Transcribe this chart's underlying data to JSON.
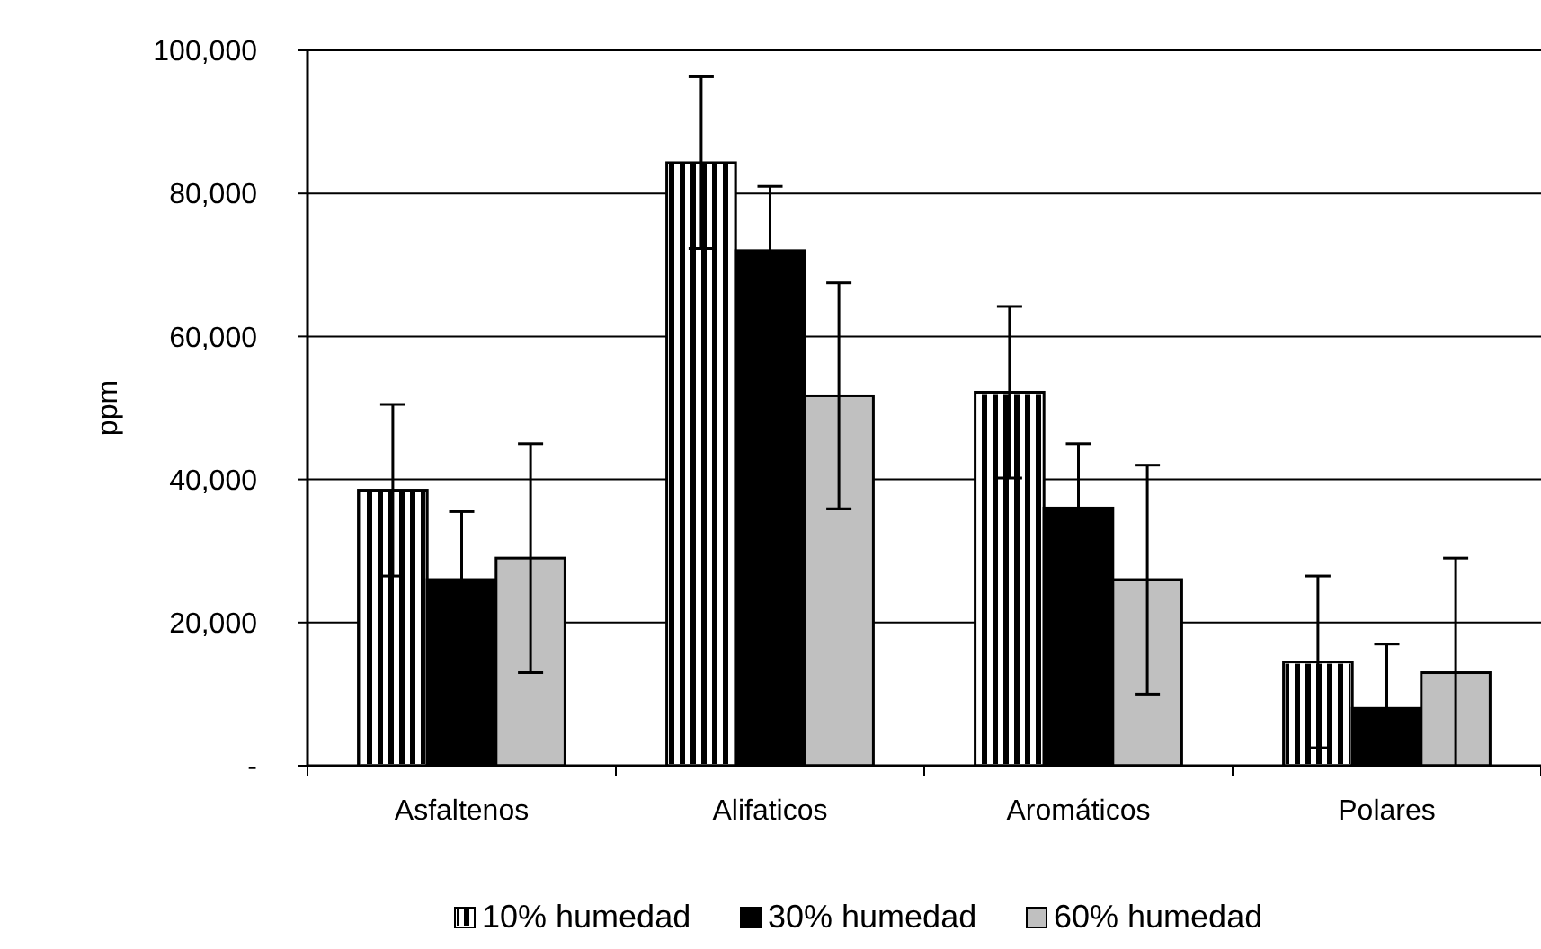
{
  "chart_data": {
    "type": "bar",
    "ylabel": "ppm",
    "categories": [
      "Asfaltenos",
      "Alifaticos",
      "Aromáticos",
      "Polares"
    ],
    "series": [
      {
        "name": "10% humedad",
        "color": "#ffffff",
        "values": [
          38500,
          84300,
          52200,
          14500
        ],
        "errors": [
          12000,
          12000,
          12000,
          12000
        ]
      },
      {
        "name": "30% humedad",
        "color": "#000000",
        "values": [
          26000,
          72000,
          36000,
          8000
        ],
        "errors": [
          9500,
          9000,
          9000,
          [
            0,
            17000
          ]
        ]
      },
      {
        "name": "60% humedad",
        "color": "#c0c0c0",
        "values": [
          29000,
          51700,
          26000,
          13000
        ],
        "errors": [
          16000,
          15800,
          16000,
          [
            0,
            29000
          ]
        ]
      }
    ],
    "ylim": [
      0,
      100000
    ],
    "yticks": [
      {
        "value": 0,
        "label": "-"
      },
      {
        "value": 20000,
        "label": "20,000"
      },
      {
        "value": 40000,
        "label": "40,000"
      },
      {
        "value": 60000,
        "label": "60,000"
      },
      {
        "value": 80000,
        "label": "80,000"
      },
      {
        "value": 100000,
        "label": "100,000"
      }
    ],
    "grid": "y",
    "legend": "bottom"
  }
}
